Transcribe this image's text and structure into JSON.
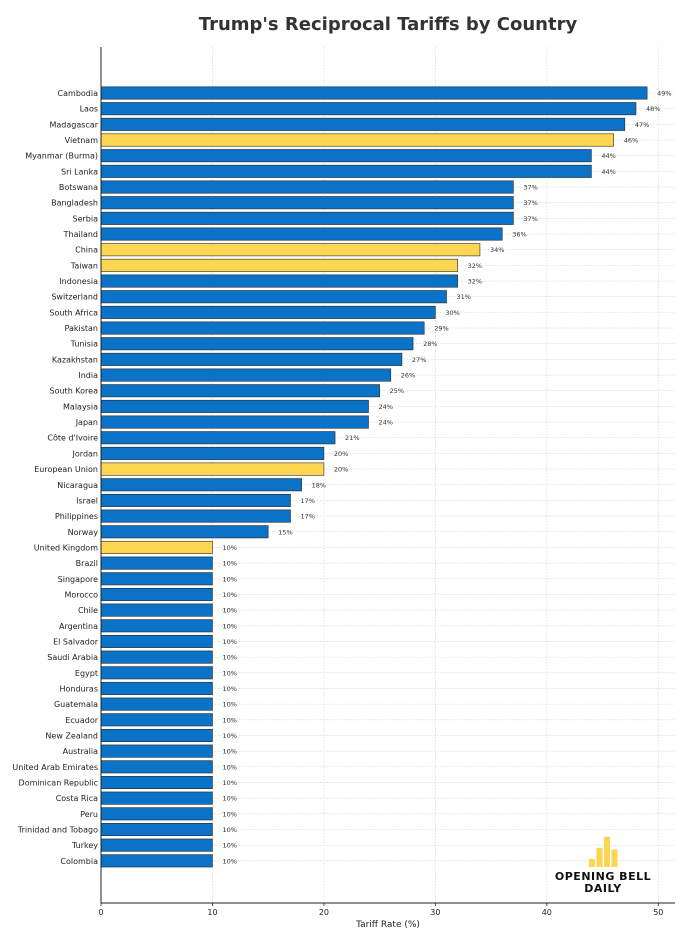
{
  "chart_data": {
    "type": "bar",
    "orientation": "horizontal",
    "title": "Trump's Reciprocal Tariffs by Country",
    "xlabel": "Tariff Rate (%)",
    "ylabel": "",
    "xlim": [
      0,
      51.5
    ],
    "xticks": [
      0,
      10,
      20,
      30,
      40,
      50
    ],
    "grid": true,
    "value_suffix": "%",
    "colors": {
      "default": "#0a72c7",
      "highlight": "#fcd650",
      "edge": "#2a2a2a"
    },
    "categories": [
      "Cambodia",
      "Laos",
      "Madagascar",
      "Vietnam",
      "Myanmar (Burma)",
      "Sri Lanka",
      "Botswana",
      "Bangladesh",
      "Serbia",
      "Thailand",
      "China",
      "Taiwan",
      "Indonesia",
      "Switzerland",
      "South Africa",
      "Pakistan",
      "Tunisia",
      "Kazakhstan",
      "India",
      "South Korea",
      "Malaysia",
      "Japan",
      "Côte d'Ivoire",
      "Jordan",
      "European Union",
      "Nicaragua",
      "Israel",
      "Philippines",
      "Norway",
      "United Kingdom",
      "Brazil",
      "Singapore",
      "Morocco",
      "Chile",
      "Argentina",
      "El Salvador",
      "Saudi Arabia",
      "Egypt",
      "Honduras",
      "Guatemala",
      "Ecuador",
      "New Zealand",
      "Australia",
      "United Arab Emirates",
      "Dominican Republic",
      "Costa Rica",
      "Peru",
      "Trinidad and Tobago",
      "Turkey",
      "Colombia"
    ],
    "values": [
      49,
      48,
      47,
      46,
      44,
      44,
      37,
      37,
      37,
      36,
      34,
      32,
      32,
      31,
      30,
      29,
      28,
      27,
      26,
      25,
      24,
      24,
      21,
      20,
      20,
      18,
      17,
      17,
      15,
      10,
      10,
      10,
      10,
      10,
      10,
      10,
      10,
      10,
      10,
      10,
      10,
      10,
      10,
      10,
      10,
      10,
      10,
      10,
      10,
      10
    ],
    "highlighted": [
      "Vietnam",
      "China",
      "Taiwan",
      "European Union",
      "United Kingdom"
    ]
  },
  "logo": {
    "text": "OPENING BELL\nDAILY",
    "color": "#fcd650",
    "bar_levels": [
      0.25,
      0.6,
      0.95,
      0.55
    ]
  }
}
